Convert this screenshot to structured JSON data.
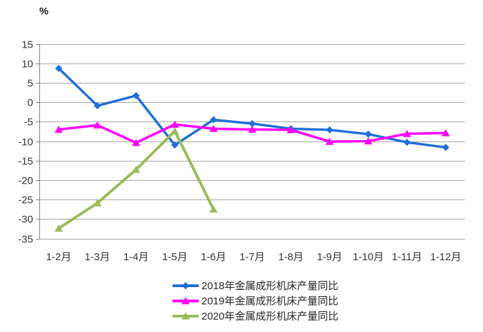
{
  "unit_label": "%",
  "chart_data": {
    "type": "line",
    "title": "",
    "xlabel": "",
    "ylabel": "%",
    "ylim": [
      -35,
      15
    ],
    "ytick_step": 5,
    "yticks": [
      15,
      10,
      5,
      0,
      -5,
      -10,
      -15,
      -20,
      -25,
      -30,
      -35
    ],
    "grid": true,
    "legend_position": "bottom",
    "categories": [
      "1-2月",
      "1-3月",
      "1-4月",
      "1-5月",
      "1-6月",
      "1-7月",
      "1-8月",
      "1-9月",
      "1-10月",
      "1-11月",
      "1-12月"
    ],
    "series": [
      {
        "name": "2018年金属成形机床产量同比",
        "color": "#1F6FD9",
        "marker": "diamond",
        "values": [
          8.7,
          -0.9,
          1.7,
          -11.0,
          -4.5,
          -5.5,
          -6.8,
          -7.1,
          -8.2,
          -10.3,
          -11.6
        ]
      },
      {
        "name": "2019年金属成形机床产量同比",
        "color": "#FF00FF",
        "marker": "triangle",
        "values": [
          -7.0,
          -5.9,
          -10.4,
          -5.7,
          -6.8,
          -7.0,
          -7.1,
          -10.1,
          -10.0,
          -8.1,
          -7.9
        ]
      },
      {
        "name": "2020年金属成形机床产量同比",
        "color": "#9BBB59",
        "marker": "triangle",
        "values": [
          -32.4,
          -25.9,
          -17.3,
          -7.4,
          -27.5
        ]
      }
    ],
    "colors": {
      "background": "#FFFFFF",
      "gridline": "#A6A6A6",
      "axis": "#808080",
      "tick_text": "#333333",
      "legend_text": "#262626"
    }
  }
}
